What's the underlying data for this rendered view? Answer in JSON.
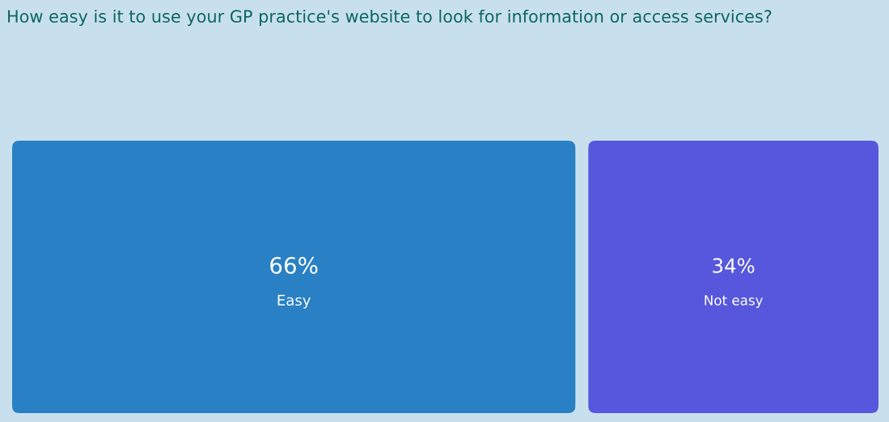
{
  "chart_data": {
    "type": "other",
    "title": "How easy is it to use your GP practice's website to look for information or access services?",
    "categories": [
      "Easy",
      "Not easy"
    ],
    "values": [
      66,
      34
    ],
    "value_labels": [
      "66%",
      "34%"
    ],
    "colors": [
      "#2a80c4",
      "#5657dc"
    ]
  }
}
